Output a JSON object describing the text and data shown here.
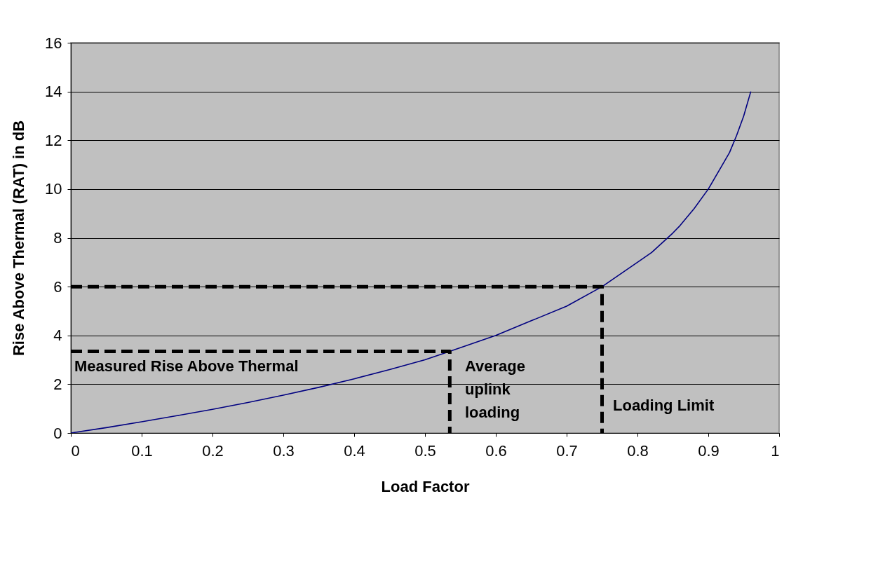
{
  "chart_data": {
    "type": "line",
    "xlabel": "Load Factor",
    "ylabel": "Rise Above Thermal (RAT) in dB",
    "xlim": [
      0,
      1
    ],
    "xticks": [
      0,
      0.1,
      0.2,
      0.3,
      0.4,
      0.5,
      0.6,
      0.7,
      0.8,
      0.9,
      1
    ],
    "ylim": [
      0,
      16
    ],
    "yticks": [
      0,
      2,
      4,
      6,
      8,
      10,
      12,
      14,
      16
    ],
    "grid": "y",
    "marker": "none",
    "series": [
      {
        "color": "#000080",
        "line_style": "solid",
        "x": [
          0,
          0.05,
          0.1,
          0.15,
          0.2,
          0.25,
          0.3,
          0.35,
          0.4,
          0.45,
          0.5,
          0.55,
          0.6,
          0.65,
          0.7,
          0.75,
          0.8,
          0.82,
          0.85,
          0.86,
          0.88,
          0.9,
          0.92,
          0.93,
          0.94,
          0.95,
          0.96
        ],
        "values": [
          0,
          0.22,
          0.46,
          0.71,
          0.97,
          1.25,
          1.55,
          1.87,
          2.22,
          2.6,
          3.0,
          3.5,
          4.0,
          4.6,
          5.2,
          6.0,
          7.0,
          7.4,
          8.2,
          8.5,
          9.2,
          10.0,
          11.0,
          11.5,
          12.2,
          13.0,
          14.0
        ]
      },
      {
        "type": "line",
        "color": "#000000",
        "line_style": "dashed",
        "x": [
          0,
          0.75,
          0.75
        ],
        "values": [
          6,
          6,
          0
        ]
      },
      {
        "type": "line",
        "color": "#000000",
        "line_style": "dashed",
        "x": [
          0,
          0.535,
          0.535
        ],
        "values": [
          3.35,
          3.35,
          0
        ]
      }
    ],
    "annotations": [
      "Measured Rise Above Thermal",
      "Average\nuplink\nloading",
      "Loading Limit"
    ]
  }
}
